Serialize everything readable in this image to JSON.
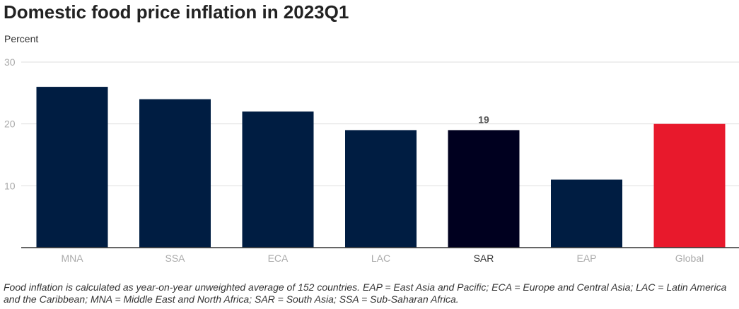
{
  "chart_data": {
    "type": "bar",
    "title": "Domestic food price inflation in 2023Q1",
    "ylabel": "Percent",
    "xlabel": "",
    "categories": [
      "MNA",
      "SSA",
      "ECA",
      "LAC",
      "SAR",
      "EAP",
      "Global"
    ],
    "values": [
      26,
      24,
      22,
      19,
      19,
      11,
      20
    ],
    "ylim": [
      0,
      30
    ],
    "yticks": [
      10,
      20,
      30
    ],
    "grid": true,
    "highlighted_category": "SAR",
    "data_labels": [
      {
        "category": "SAR",
        "label": "19"
      }
    ],
    "colors": {
      "default": "#001D42",
      "highlight": "#00001F",
      "global": "#E8192C",
      "grid": "#DDDDDD",
      "axis": "#333333",
      "tick_label": "#AAAAAA",
      "highlight_tick_label": "#333333"
    }
  },
  "note": "Food inflation is calculated as year-on-year unweighted average of 152 countries. EAP = East Asia and Pacific; ECA = Europe and Central Asia; LAC = Latin America and the Caribbean; MNA = Middle East and North Africa; SAR = South Asia; SSA = Sub-Saharan Africa."
}
